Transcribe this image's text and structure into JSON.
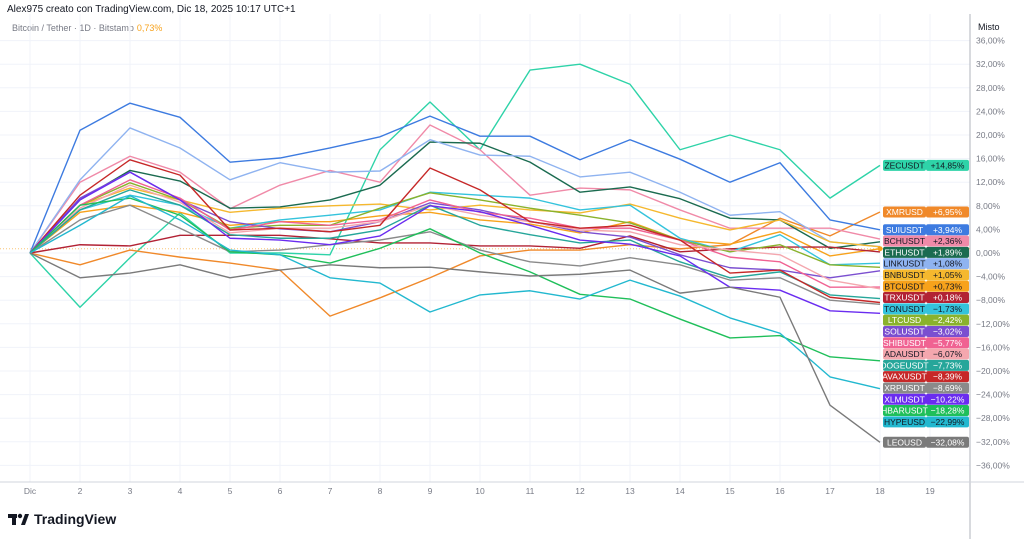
{
  "header": {
    "text": "Alex975 creato con TradingView.com, Dic 18, 2025 10:17 UTC+1"
  },
  "legend": {
    "symbol": "Bitcoin / Tether · 1D · Bitstamp",
    "change": "0,73%"
  },
  "scale_mode": "Misto",
  "logo": "TradingView",
  "chart_data": {
    "type": "line",
    "xlabel": "",
    "ylabel": "",
    "x": [
      1,
      2,
      3,
      4,
      5,
      6,
      7,
      8,
      9,
      10,
      11,
      12,
      13,
      14,
      15,
      16,
      17,
      18
    ],
    "x_tick_labels": [
      "Dic",
      "2",
      "3",
      "4",
      "5",
      "6",
      "7",
      "8",
      "9",
      "10",
      "11",
      "12",
      "13",
      "14",
      "15",
      "16",
      "17",
      "18",
      "19"
    ],
    "y_unit": "%",
    "ylim": [
      -38,
      38
    ],
    "y_ticks": [
      36,
      32,
      28,
      24,
      20,
      16,
      12,
      8,
      4,
      0,
      -4,
      -8,
      -12,
      -16,
      -20,
      -24,
      -28,
      -32,
      -36
    ],
    "y_tick_labels": [
      "36,00%",
      "32,00%",
      "28,00%",
      "24,00%",
      "20,00%",
      "16,00%",
      "12,00%",
      "8,00%",
      "4,00%",
      "0,00%",
      "−4,00%",
      "−8,00%",
      "−12,00%",
      "−16,00%",
      "−20,00%",
      "−24,00%",
      "−28,00%",
      "−32,00%",
      "−36,00%"
    ],
    "grid": true,
    "series": [
      {
        "name": "ZECUSDT",
        "last": "+14,85%",
        "color": "#2ed3a8",
        "text": "#131722",
        "values": [
          0,
          -9.2,
          -0.8,
          6.8,
          0,
          0,
          -0.3,
          17.5,
          25.6,
          17.5,
          31,
          32,
          28.6,
          17.5,
          20,
          17.5,
          9.3,
          14.85
        ]
      },
      {
        "name": "XMRUSD",
        "last": "+6,95%",
        "color": "#f0892a",
        "text": "#ffffff",
        "values": [
          0,
          -2,
          0.5,
          -0.7,
          -1.7,
          -2.9,
          -10.7,
          -7.6,
          -4.2,
          -0.5,
          0.5,
          0.5,
          1.4,
          0.7,
          1.4,
          5.9,
          2.9,
          6.95
        ]
      },
      {
        "name": "SUIUSDT",
        "last": "+3,94%",
        "color": "#3d7be0",
        "text": "#ffffff",
        "values": [
          0,
          20.8,
          25.4,
          23,
          15.4,
          16.1,
          17.8,
          19.7,
          23.2,
          19.8,
          19.8,
          15.8,
          19.2,
          15.9,
          12,
          15.3,
          5.6,
          3.94
        ]
      },
      {
        "name": "BCHUSDT",
        "last": "+2,36%",
        "color": "#f08aa8",
        "text": "#131722",
        "values": [
          0,
          12,
          16.4,
          13.7,
          7.5,
          11.5,
          14,
          12,
          21.7,
          17.5,
          9.8,
          11,
          10.7,
          7.3,
          4.2,
          4.2,
          4.2,
          2.36
        ]
      },
      {
        "name": "ETHUSDT",
        "last": "+1,89%",
        "color": "#1b6b50",
        "text": "#ffffff",
        "values": [
          0,
          9,
          14,
          12.2,
          7.6,
          7.8,
          9,
          11.5,
          18.8,
          18.6,
          15.4,
          10.3,
          11.2,
          9.2,
          5.9,
          5.6,
          0.8,
          1.89
        ]
      },
      {
        "name": "LINKUSDT",
        "last": "+1,08%",
        "color": "#8fb3f0",
        "text": "#131722",
        "values": [
          0,
          12.4,
          21.2,
          17.8,
          12.4,
          15.3,
          13.7,
          13.9,
          19.2,
          16.6,
          16.4,
          12.9,
          13.7,
          10.3,
          6.4,
          7,
          1.9,
          1.08
        ]
      },
      {
        "name": "BNBUSDT",
        "last": "+1,05%",
        "color": "#f5b82e",
        "text": "#131722",
        "values": [
          0,
          8.1,
          11,
          9,
          6.9,
          7.6,
          8,
          8.3,
          7.3,
          8.1,
          7.3,
          6.8,
          8.3,
          5.9,
          3.9,
          5.6,
          1.9,
          1.05
        ]
      },
      {
        "name": "BTCUSDT",
        "last": "+0,73%",
        "color": "#f7a21b",
        "text": "#131722",
        "values": [
          0,
          6.9,
          8.1,
          6.9,
          4.7,
          5.3,
          5.3,
          6.3,
          6.9,
          5.6,
          4.9,
          3.4,
          5.3,
          2.2,
          1.5,
          3.6,
          -0.5,
          0.73
        ]
      },
      {
        "name": "TRXUSDT",
        "last": "+0,18%",
        "color": "#b22234",
        "text": "#ffffff",
        "values": [
          0,
          1.4,
          1.2,
          3,
          3,
          3,
          2.4,
          1.7,
          1.7,
          1.2,
          1.2,
          0.8,
          2.9,
          0.2,
          0.7,
          1,
          1,
          0.18
        ]
      },
      {
        "name": "TONUSDT",
        "last": "−1,73%",
        "color": "#34c3dc",
        "text": "#131722",
        "values": [
          0,
          7.3,
          9.8,
          8.1,
          4.2,
          5.6,
          6.4,
          7.3,
          10.3,
          9.8,
          9.3,
          7.3,
          8.1,
          2.5,
          0.2,
          3.1,
          -2,
          -1.73
        ]
      },
      {
        "name": "LTCUSD",
        "last": "−2,42%",
        "color": "#8ab22c",
        "text": "#ffffff",
        "values": [
          0,
          8.1,
          11.9,
          9,
          4.2,
          4.7,
          4.7,
          7.6,
          10.2,
          9,
          7.6,
          6.4,
          5.1,
          2.2,
          0.2,
          1.4,
          -2,
          -2.42
        ]
      },
      {
        "name": "SOLUSDT",
        "last": "−3,02%",
        "color": "#7b4fd0",
        "text": "#ffffff",
        "values": [
          0,
          9.3,
          13.7,
          9,
          5.3,
          4.1,
          3.6,
          5.3,
          8.5,
          7.3,
          5.4,
          3.6,
          2.7,
          -0.3,
          -2.5,
          -2.9,
          -4.2,
          -3.02
        ]
      },
      {
        "name": "SHIBUSDT",
        "last": "−5,77%",
        "color": "#f06292",
        "text": "#ffffff",
        "values": [
          0,
          8.1,
          12.4,
          9.3,
          3.9,
          5.3,
          4.7,
          5.6,
          9,
          6.9,
          5.9,
          4.2,
          4.2,
          2.2,
          -0.7,
          -1.5,
          -5.8,
          -5.77
        ]
      },
      {
        "name": "ADAUSDT",
        "last": "−6,07%",
        "color": "#f4a7ae",
        "text": "#131722",
        "values": [
          0,
          7.6,
          11.5,
          8.6,
          3.4,
          4.2,
          4.2,
          5.3,
          8.1,
          6.4,
          5.3,
          3.9,
          3.6,
          1.4,
          0.5,
          -0.3,
          -4.6,
          -6.07
        ]
      },
      {
        "name": "DOGEUSDT",
        "last": "−7,73%",
        "color": "#26a69a",
        "text": "#ffffff",
        "values": [
          0,
          7.3,
          10.7,
          8.1,
          3.1,
          2.5,
          2.5,
          3.9,
          8.1,
          4.7,
          3.1,
          1.7,
          2.2,
          -1.5,
          -4.2,
          -3.2,
          -7.1,
          -7.73
        ]
      },
      {
        "name": "AVAXUSDT",
        "last": "−8,39%",
        "color": "#c62828",
        "text": "#ffffff",
        "values": [
          0,
          9.8,
          15.8,
          13.2,
          3.9,
          4.2,
          3.6,
          4.7,
          14.4,
          10.7,
          5.3,
          4.2,
          4.7,
          2.2,
          -3.4,
          -2.9,
          -7.5,
          -8.39
        ]
      },
      {
        "name": "XRPUSDT",
        "last": "−8,69%",
        "color": "#8a8a8a",
        "text": "#ffffff",
        "values": [
          0,
          5.6,
          8.1,
          4.2,
          0.2,
          0.5,
          1.4,
          2.2,
          3.6,
          0.5,
          -1.5,
          -2.2,
          -0.8,
          -2,
          -4.6,
          -4.2,
          -8,
          -8.69
        ]
      },
      {
        "name": "XLMUSDT",
        "last": "−10,22%",
        "color": "#6a2cf0",
        "text": "#ffffff",
        "values": [
          0,
          9,
          13.7,
          9,
          2.5,
          2.2,
          1.4,
          2.9,
          8,
          7,
          4.7,
          2.2,
          1.5,
          -0.5,
          -5.8,
          -6.3,
          -9.8,
          -10.22
        ]
      },
      {
        "name": "HBARUSDT",
        "last": "−18,28%",
        "color": "#1fbf5a",
        "text": "#ffffff",
        "values": [
          0,
          8.1,
          9.3,
          6.4,
          0.2,
          -0.3,
          -1.7,
          0.8,
          4.1,
          0,
          -3.2,
          -7,
          -7.8,
          -11.2,
          -14.4,
          -14,
          -17.6,
          -18.28
        ]
      },
      {
        "name": "HYPEUSD",
        "last": "−22,99%",
        "color": "#22b8cf",
        "text": "#131722",
        "values": [
          0,
          4.7,
          9.7,
          5.6,
          0.5,
          -0.3,
          -4.2,
          -5.1,
          -10,
          -7.1,
          -6.4,
          -7.8,
          -4.6,
          -7.3,
          -11,
          -13.6,
          -21,
          -22.99
        ]
      },
      {
        "name": "LEOUSD",
        "last": "−32,08%",
        "color": "#7a7a7a",
        "text": "#ffffff",
        "values": [
          0,
          -4.2,
          -3.4,
          -2,
          -4.2,
          -2.9,
          -2,
          -2.5,
          -2.4,
          -3.2,
          -3.9,
          -3.6,
          -2.9,
          -6.8,
          -5.8,
          -7.5,
          -25.8,
          -32.08
        ]
      }
    ]
  }
}
